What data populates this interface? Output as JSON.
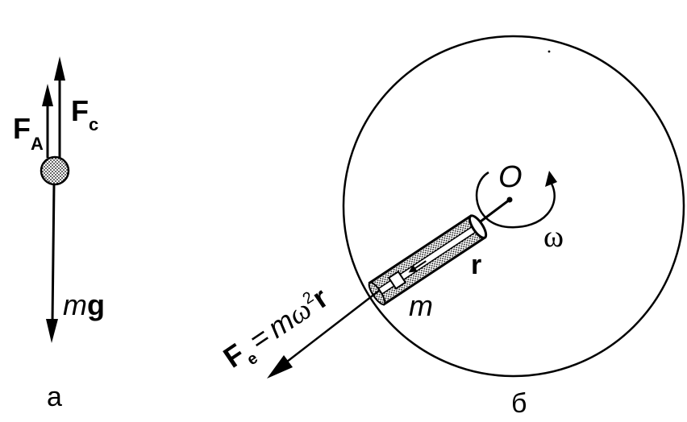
{
  "panel_a": {
    "caption": "а",
    "force_archimedes": {
      "symbol": "F",
      "subscript": "A"
    },
    "force_drag": {
      "symbol": "F",
      "subscript": "c"
    },
    "gravity": {
      "mass": "m",
      "g": "g"
    }
  },
  "panel_b": {
    "caption": "б",
    "center_label": "O",
    "omega_label": "ω",
    "radius_label": "r",
    "mass_label": "m",
    "force_label": {
      "symbol": "F",
      "subscript": "e",
      "equals": "=",
      "m": "m",
      "omega": "ω",
      "power": "2",
      "r": "r"
    }
  }
}
